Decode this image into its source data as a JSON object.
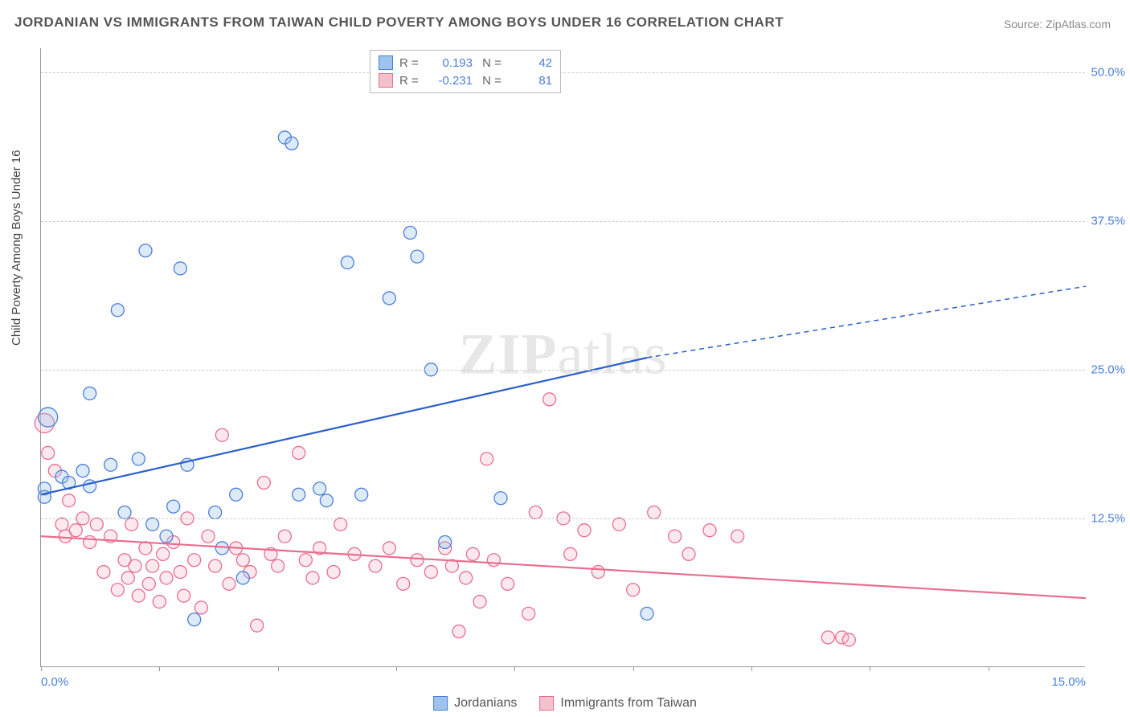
{
  "title": "JORDANIAN VS IMMIGRANTS FROM TAIWAN CHILD POVERTY AMONG BOYS UNDER 16 CORRELATION CHART",
  "source": "Source: ZipAtlas.com",
  "watermark_left": "ZIP",
  "watermark_right": "atlas",
  "ylabel": "Child Poverty Among Boys Under 16",
  "chart": {
    "type": "scatter",
    "xlim": [
      0,
      15
    ],
    "ylim": [
      0,
      52
    ],
    "x_ticks": [
      0,
      1.7,
      3.4,
      5.1,
      6.8,
      8.5,
      10.2,
      11.9,
      13.6
    ],
    "x_tick_labels": {
      "0": "0.0%",
      "15": "15.0%"
    },
    "y_gridlines": [
      12.5,
      25.0,
      37.5,
      50.0
    ],
    "y_tick_labels": [
      "12.5%",
      "25.0%",
      "37.5%",
      "50.0%"
    ],
    "background_color": "#ffffff",
    "grid_color": "#cccccc",
    "axis_color": "#999999",
    "tick_label_color": "#4a7fd8",
    "marker_radius": 8,
    "marker_radius_large": 12,
    "marker_stroke_width": 1.3,
    "marker_fill_opacity": 0.35,
    "trendline_width": 2.2,
    "series": [
      {
        "name": "Jordanians",
        "color_fill": "#9ec3ec",
        "color_stroke": "#4a7fd8",
        "trend_color": "#2b5fc9",
        "R": "0.193",
        "N": "42",
        "trend": {
          "x1": 0,
          "y1": 14.5,
          "x2": 8.7,
          "y2": 26.0,
          "x2_ext": 15,
          "y2_ext": 32.0
        },
        "points": [
          {
            "x": 0.05,
            "y": 15.0
          },
          {
            "x": 0.1,
            "y": 21.0,
            "r": 12
          },
          {
            "x": 0.05,
            "y": 14.3
          },
          {
            "x": 0.3,
            "y": 16.0
          },
          {
            "x": 0.4,
            "y": 15.5
          },
          {
            "x": 0.6,
            "y": 16.5
          },
          {
            "x": 0.7,
            "y": 15.2
          },
          {
            "x": 0.7,
            "y": 23.0
          },
          {
            "x": 1.0,
            "y": 17.0
          },
          {
            "x": 1.1,
            "y": 30.0
          },
          {
            "x": 1.2,
            "y": 13.0
          },
          {
            "x": 1.4,
            "y": 17.5
          },
          {
            "x": 1.5,
            "y": 35.0
          },
          {
            "x": 1.6,
            "y": 12.0
          },
          {
            "x": 1.8,
            "y": 11.0
          },
          {
            "x": 1.9,
            "y": 13.5
          },
          {
            "x": 2.0,
            "y": 33.5
          },
          {
            "x": 2.1,
            "y": 17.0
          },
          {
            "x": 2.2,
            "y": 4.0
          },
          {
            "x": 2.5,
            "y": 13.0
          },
          {
            "x": 2.6,
            "y": 10.0
          },
          {
            "x": 2.8,
            "y": 14.5
          },
          {
            "x": 2.9,
            "y": 7.5
          },
          {
            "x": 3.5,
            "y": 44.5
          },
          {
            "x": 3.6,
            "y": 44.0
          },
          {
            "x": 3.7,
            "y": 14.5
          },
          {
            "x": 4.0,
            "y": 15.0
          },
          {
            "x": 4.1,
            "y": 14.0
          },
          {
            "x": 4.4,
            "y": 34.0
          },
          {
            "x": 4.6,
            "y": 14.5
          },
          {
            "x": 5.0,
            "y": 31.0
          },
          {
            "x": 5.3,
            "y": 36.5
          },
          {
            "x": 5.4,
            "y": 34.5
          },
          {
            "x": 5.6,
            "y": 25.0
          },
          {
            "x": 5.8,
            "y": 10.5
          },
          {
            "x": 6.6,
            "y": 14.2
          },
          {
            "x": 8.7,
            "y": 4.5
          }
        ]
      },
      {
        "name": "Immigrants from Taiwan",
        "color_fill": "#f3c0cd",
        "color_stroke": "#e86e8f",
        "trend_color": "#e86e8f",
        "R": "-0.231",
        "N": "81",
        "trend": {
          "x1": 0,
          "y1": 11.0,
          "x2": 15,
          "y2": 5.8
        },
        "points": [
          {
            "x": 0.05,
            "y": 20.5,
            "r": 12
          },
          {
            "x": 0.1,
            "y": 18.0
          },
          {
            "x": 0.2,
            "y": 16.5
          },
          {
            "x": 0.3,
            "y": 12.0
          },
          {
            "x": 0.35,
            "y": 11.0
          },
          {
            "x": 0.4,
            "y": 14.0
          },
          {
            "x": 0.5,
            "y": 11.5
          },
          {
            "x": 0.6,
            "y": 12.5
          },
          {
            "x": 0.7,
            "y": 10.5
          },
          {
            "x": 0.8,
            "y": 12.0
          },
          {
            "x": 0.9,
            "y": 8.0
          },
          {
            "x": 1.0,
            "y": 11.0
          },
          {
            "x": 1.1,
            "y": 6.5
          },
          {
            "x": 1.2,
            "y": 9.0
          },
          {
            "x": 1.25,
            "y": 7.5
          },
          {
            "x": 1.3,
            "y": 12.0
          },
          {
            "x": 1.35,
            "y": 8.5
          },
          {
            "x": 1.4,
            "y": 6.0
          },
          {
            "x": 1.5,
            "y": 10.0
          },
          {
            "x": 1.55,
            "y": 7.0
          },
          {
            "x": 1.6,
            "y": 8.5
          },
          {
            "x": 1.7,
            "y": 5.5
          },
          {
            "x": 1.75,
            "y": 9.5
          },
          {
            "x": 1.8,
            "y": 7.5
          },
          {
            "x": 1.9,
            "y": 10.5
          },
          {
            "x": 2.0,
            "y": 8.0
          },
          {
            "x": 2.05,
            "y": 6.0
          },
          {
            "x": 2.1,
            "y": 12.5
          },
          {
            "x": 2.2,
            "y": 9.0
          },
          {
            "x": 2.3,
            "y": 5.0
          },
          {
            "x": 2.4,
            "y": 11.0
          },
          {
            "x": 2.5,
            "y": 8.5
          },
          {
            "x": 2.6,
            "y": 19.5
          },
          {
            "x": 2.7,
            "y": 7.0
          },
          {
            "x": 2.8,
            "y": 10.0
          },
          {
            "x": 2.9,
            "y": 9.0
          },
          {
            "x": 3.0,
            "y": 8.0
          },
          {
            "x": 3.1,
            "y": 3.5
          },
          {
            "x": 3.2,
            "y": 15.5
          },
          {
            "x": 3.3,
            "y": 9.5
          },
          {
            "x": 3.4,
            "y": 8.5
          },
          {
            "x": 3.5,
            "y": 11.0
          },
          {
            "x": 3.7,
            "y": 18.0
          },
          {
            "x": 3.8,
            "y": 9.0
          },
          {
            "x": 3.9,
            "y": 7.5
          },
          {
            "x": 4.0,
            "y": 10.0
          },
          {
            "x": 4.2,
            "y": 8.0
          },
          {
            "x": 4.3,
            "y": 12.0
          },
          {
            "x": 4.5,
            "y": 9.5
          },
          {
            "x": 4.8,
            "y": 8.5
          },
          {
            "x": 5.0,
            "y": 10.0
          },
          {
            "x": 5.2,
            "y": 7.0
          },
          {
            "x": 5.4,
            "y": 9.0
          },
          {
            "x": 5.6,
            "y": 8.0
          },
          {
            "x": 5.8,
            "y": 10.0
          },
          {
            "x": 5.9,
            "y": 8.5
          },
          {
            "x": 6.0,
            "y": 3.0
          },
          {
            "x": 6.1,
            "y": 7.5
          },
          {
            "x": 6.2,
            "y": 9.5
          },
          {
            "x": 6.3,
            "y": 5.5
          },
          {
            "x": 6.4,
            "y": 17.5
          },
          {
            "x": 6.5,
            "y": 9.0
          },
          {
            "x": 6.7,
            "y": 7.0
          },
          {
            "x": 7.0,
            "y": 4.5
          },
          {
            "x": 7.1,
            "y": 13.0
          },
          {
            "x": 7.3,
            "y": 22.5
          },
          {
            "x": 7.5,
            "y": 12.5
          },
          {
            "x": 7.6,
            "y": 9.5
          },
          {
            "x": 7.8,
            "y": 11.5
          },
          {
            "x": 8.0,
            "y": 8.0
          },
          {
            "x": 8.3,
            "y": 12.0
          },
          {
            "x": 8.5,
            "y": 6.5
          },
          {
            "x": 8.8,
            "y": 13.0
          },
          {
            "x": 9.1,
            "y": 11.0
          },
          {
            "x": 9.3,
            "y": 9.5
          },
          {
            "x": 9.6,
            "y": 11.5
          },
          {
            "x": 10.0,
            "y": 11.0
          },
          {
            "x": 11.3,
            "y": 2.5
          },
          {
            "x": 11.5,
            "y": 2.5
          },
          {
            "x": 11.6,
            "y": 2.3
          }
        ]
      }
    ]
  },
  "legend_bottom": [
    {
      "swatch_fill": "#9ec3ec",
      "swatch_stroke": "#4a7fd8",
      "label": "Jordanians"
    },
    {
      "swatch_fill": "#f3c0cd",
      "swatch_stroke": "#e86e8f",
      "label": "Immigrants from Taiwan"
    }
  ]
}
